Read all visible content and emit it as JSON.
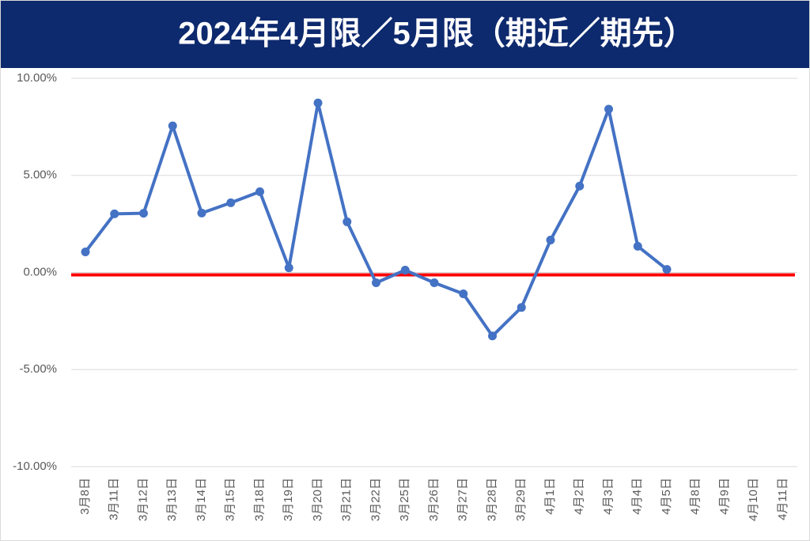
{
  "chart_data": {
    "type": "line",
    "title": "2024年4月限／5月限（期近／期先）",
    "categories": [
      "3月8日",
      "3月11日",
      "3月12日",
      "3月13日",
      "3月14日",
      "3月15日",
      "3月18日",
      "3月19日",
      "3月20日",
      "3月21日",
      "3月22日",
      "3月25日",
      "3月26日",
      "3月27日",
      "3月28日",
      "3月29日",
      "4月1日",
      "4月2日",
      "4月3日",
      "4月4日",
      "4月5日",
      "4月8日",
      "4月9日",
      "4月10日",
      "4月11日"
    ],
    "series": [
      {
        "color": "#4472c4",
        "values": [
          1.06,
          3.02,
          3.05,
          7.55,
          3.06,
          3.59,
          4.16,
          0.24,
          8.73,
          2.61,
          -0.53,
          0.12,
          -0.53,
          -1.1,
          -3.27,
          -1.8,
          1.67,
          4.45,
          8.41,
          1.35,
          0.16,
          null,
          null,
          null,
          null
        ]
      }
    ],
    "ylim": [
      -10,
      10
    ],
    "yticks": [
      {
        "value": -10,
        "label": "-10.00%"
      },
      {
        "value": -5,
        "label": "-5.00%"
      },
      {
        "value": 0,
        "label": "0.00%"
      },
      {
        "value": 5,
        "label": "5.00%"
      },
      {
        "value": 10,
        "label": "10.00%"
      }
    ],
    "grid": true,
    "reference_line": {
      "value": 0,
      "color": "#ff0000"
    }
  }
}
